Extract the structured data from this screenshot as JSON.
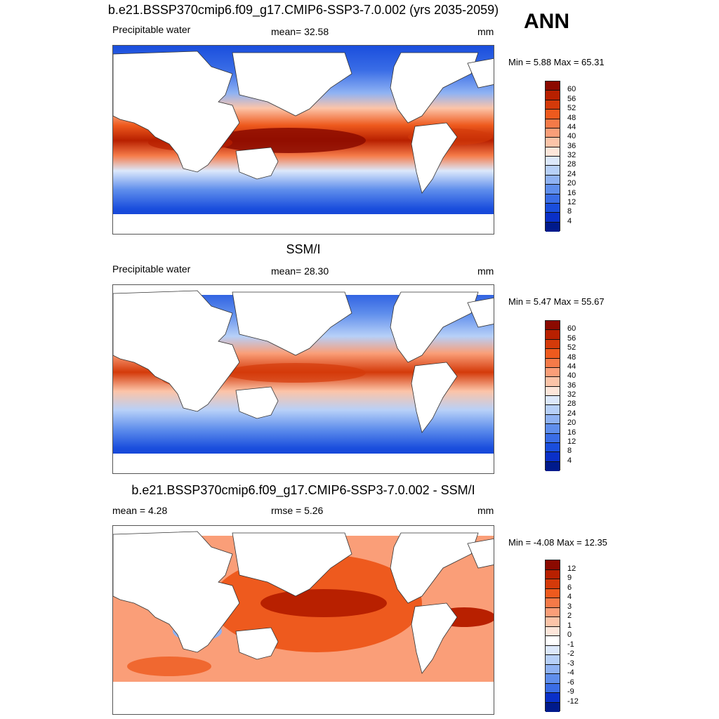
{
  "season": "ANN",
  "panels": [
    {
      "title": "b.e21.BSSP370cmip6.f09_g17.CMIP6-SSP3-7.0.002 (yrs 2035-2059)",
      "left_label": "Precipitable water",
      "mid_label": "mean=  32.58",
      "units": "mm",
      "minmax": "Min =   5.88 Max =  65.31",
      "colorbar": {
        "labels": [
          "60",
          "56",
          "52",
          "48",
          "44",
          "40",
          "36",
          "32",
          "28",
          "24",
          "20",
          "16",
          "12",
          "8",
          "4"
        ],
        "colors": [
          "#8b0a00",
          "#b82000",
          "#d43a0a",
          "#ee5a1e",
          "#f57a48",
          "#fa9e78",
          "#fcc4a8",
          "#fde6da",
          "#dce8fb",
          "#b7d0f8",
          "#8fb2f3",
          "#5f8eec",
          "#3a6de6",
          "#1a4edd",
          "#0a30c8",
          "#001a8c"
        ]
      }
    },
    {
      "title": "SSM/I",
      "left_label": "Precipitable water",
      "mid_label": "mean=  28.30",
      "units": "mm",
      "minmax": "Min =   5.47 Max =  55.67",
      "colorbar": {
        "labels": [
          "60",
          "56",
          "52",
          "48",
          "44",
          "40",
          "36",
          "32",
          "28",
          "24",
          "20",
          "16",
          "12",
          "8",
          "4"
        ],
        "colors": [
          "#8b0a00",
          "#b82000",
          "#d43a0a",
          "#ee5a1e",
          "#f57a48",
          "#fa9e78",
          "#fcc4a8",
          "#fde6da",
          "#dce8fb",
          "#b7d0f8",
          "#8fb2f3",
          "#5f8eec",
          "#3a6de6",
          "#1a4edd",
          "#0a30c8",
          "#001a8c"
        ]
      }
    },
    {
      "title": "b.e21.BSSP370cmip6.f09_g17.CMIP6-SSP3-7.0.002 - SSM/I",
      "left_label": "mean =   4.28",
      "mid_label": "rmse =   5.26",
      "units": "mm",
      "minmax": "Min =  -4.08 Max =  12.35",
      "colorbar": {
        "labels": [
          "12",
          "9",
          "6",
          "4",
          "3",
          "2",
          "1",
          "0",
          "-1",
          "-2",
          "-3",
          "-4",
          "-6",
          "-9",
          "-12"
        ],
        "colors": [
          "#8b0a00",
          "#b82000",
          "#d43a0a",
          "#ee5a1e",
          "#f57a48",
          "#fa9e78",
          "#fcc4a8",
          "#fde6da",
          "#ffffff",
          "#dce8fb",
          "#b7d0f8",
          "#8fb2f3",
          "#5f8eec",
          "#3a6de6",
          "#0a30c8",
          "#001a8c"
        ]
      }
    }
  ]
}
